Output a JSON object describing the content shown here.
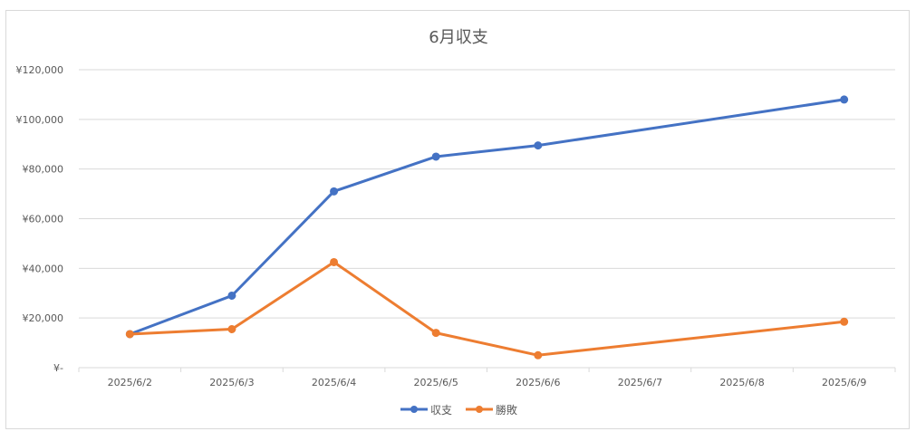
{
  "chart_data": {
    "type": "line",
    "title": "6月収支",
    "xlabel": "",
    "ylabel": "",
    "x": [
      "2025/6/2",
      "2025/6/3",
      "2025/6/4",
      "2025/6/5",
      "2025/6/6",
      "2025/6/7",
      "2025/6/8",
      "2025/6/9"
    ],
    "y_tick_labels": [
      "¥-",
      "¥20,000",
      "¥40,000",
      "¥60,000",
      "¥80,000",
      "¥100,000",
      "¥120,000"
    ],
    "ylim": [
      0,
      120000
    ],
    "grid": true,
    "legend_position": "bottom",
    "series": [
      {
        "name": "収支",
        "color": "#4472c4",
        "points": [
          {
            "x": "2025/6/2",
            "y": 13500
          },
          {
            "x": "2025/6/3",
            "y": 29000
          },
          {
            "x": "2025/6/4",
            "y": 71000
          },
          {
            "x": "2025/6/5",
            "y": 85000
          },
          {
            "x": "2025/6/6",
            "y": 89500
          },
          {
            "x": "2025/6/9",
            "y": 108000
          }
        ]
      },
      {
        "name": "勝敗",
        "color": "#ed7d31",
        "points": [
          {
            "x": "2025/6/2",
            "y": 13500
          },
          {
            "x": "2025/6/3",
            "y": 15500
          },
          {
            "x": "2025/6/4",
            "y": 42500
          },
          {
            "x": "2025/6/5",
            "y": 14000
          },
          {
            "x": "2025/6/6",
            "y": 5000
          },
          {
            "x": "2025/6/9",
            "y": 18500
          }
        ]
      }
    ]
  }
}
